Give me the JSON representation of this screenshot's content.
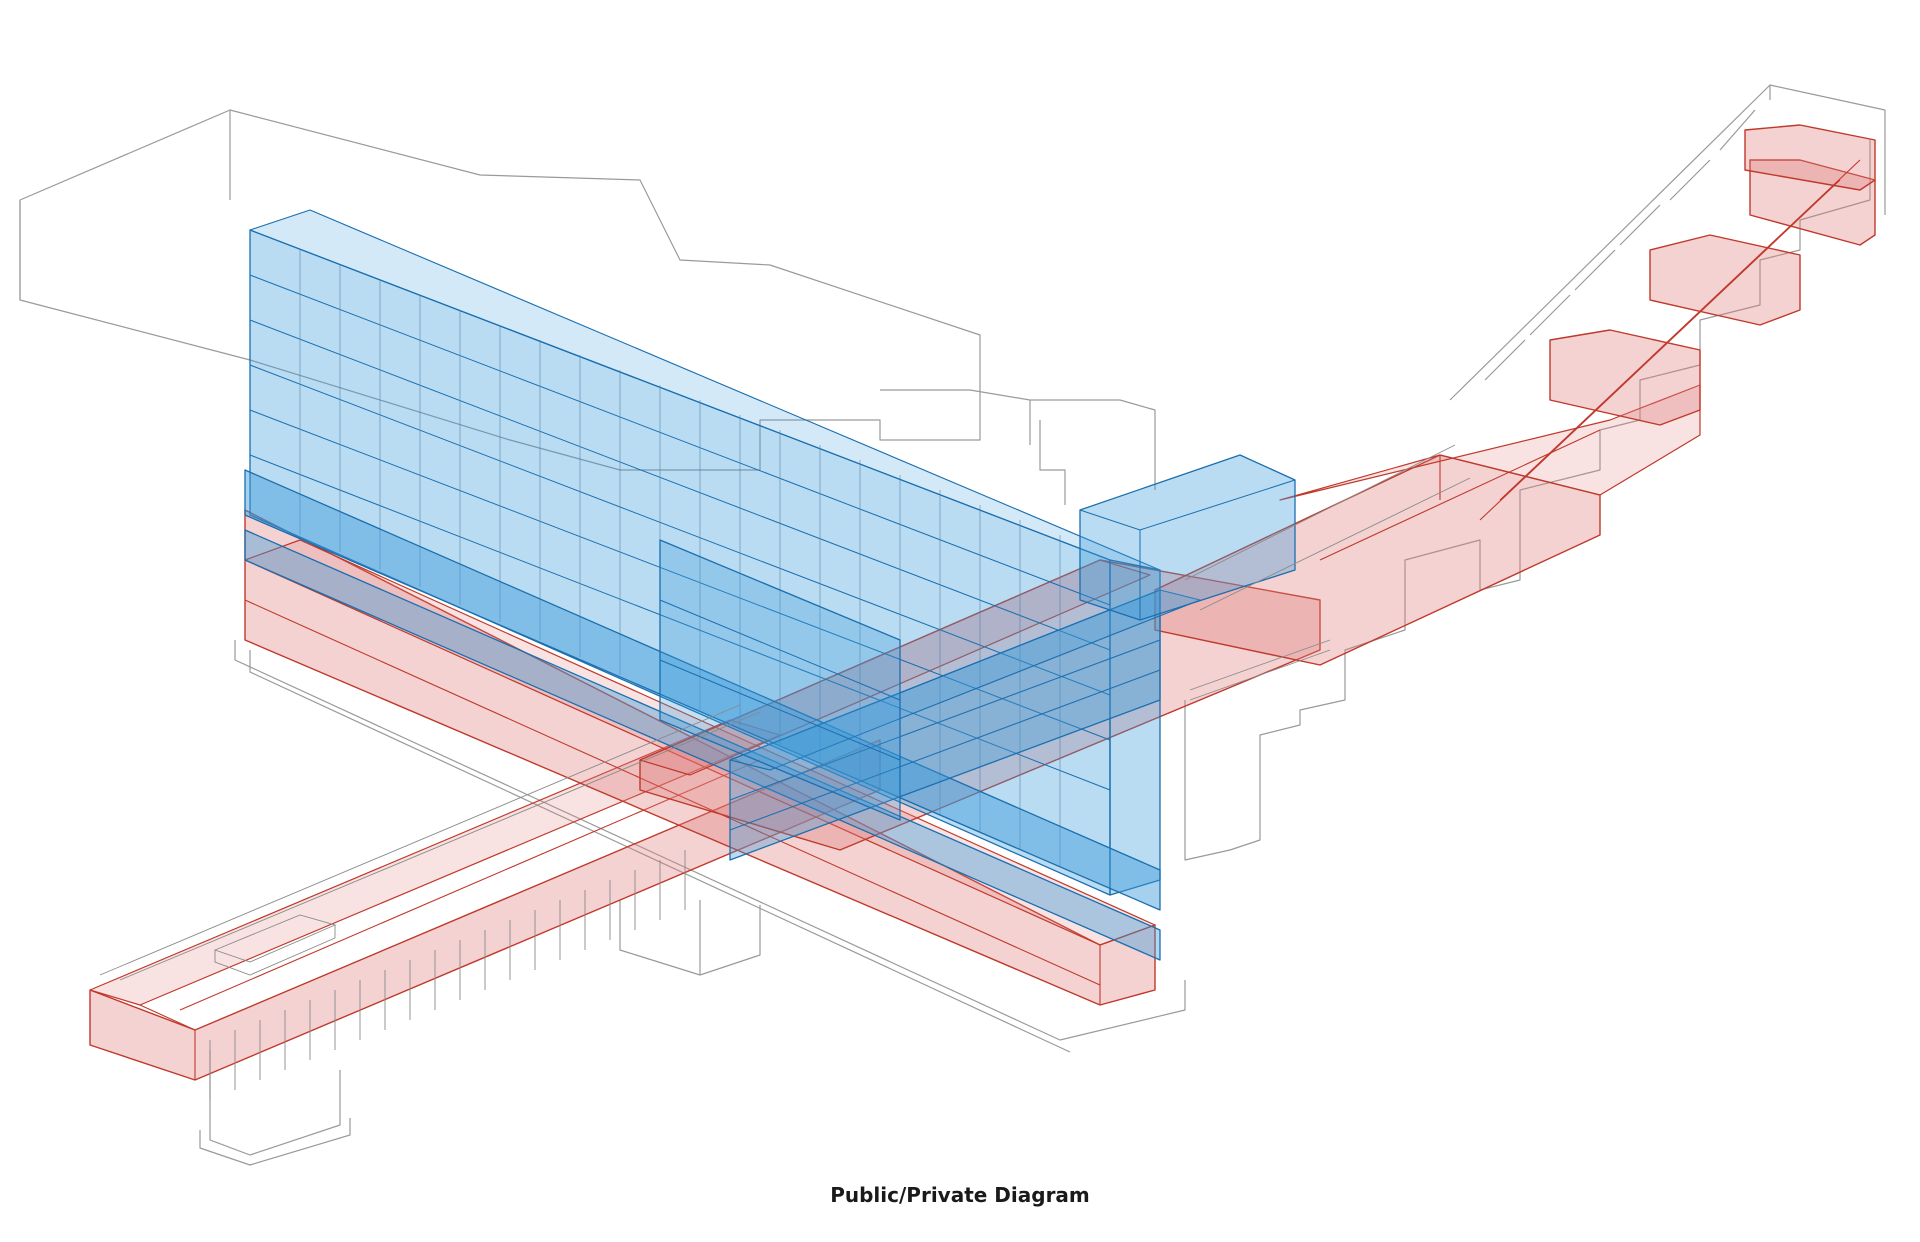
{
  "caption": "Public/Private Diagram",
  "colors": {
    "public_zone": "#e07a7a",
    "public_zone_stroke": "#c0392b",
    "private_zone": "#3a9ad9",
    "private_zone_stroke": "#1a6fb0",
    "context_outline": "#9a9a9a"
  },
  "zones": [
    {
      "name": "public",
      "color_key": "public_zone"
    },
    {
      "name": "private",
      "color_key": "private_zone"
    }
  ]
}
